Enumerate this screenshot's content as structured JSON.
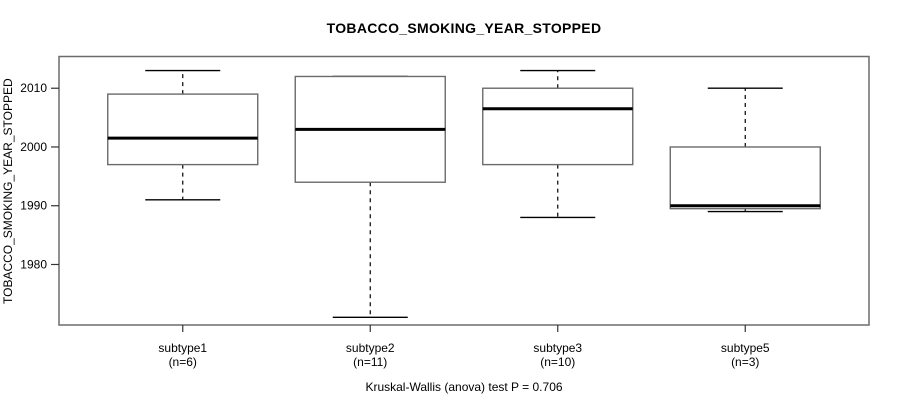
{
  "title": "TOBACCO_SMOKING_YEAR_STOPPED",
  "y_axis": {
    "label": "TOBACCO_SMOKING_YEAR_STOPPED",
    "ticks": [
      1980,
      1990,
      2000,
      2010
    ]
  },
  "caption": "Kruskal-Wallis (anova) test P = 0.706",
  "chart_data": {
    "type": "boxplot",
    "title": "TOBACCO_SMOKING_YEAR_STOPPED",
    "xlabel": "",
    "ylabel": "TOBACCO_SMOKING_YEAR_STOPPED",
    "ylim": [
      1969.7,
      2015.4
    ],
    "yticks": [
      1980,
      1990,
      2000,
      2010
    ],
    "grid": false,
    "legend": "none",
    "caption": "Kruskal-Wallis (anova) test P = 0.706",
    "groups": [
      {
        "label": "subtype1",
        "sublabel": "(n=6)",
        "n": 6,
        "min": 1991,
        "q1": 1997,
        "median": 2001.5,
        "q3": 2009,
        "max": 2013
      },
      {
        "label": "subtype2",
        "sublabel": "(n=11)",
        "n": 11,
        "min": 1971,
        "q1": 1994,
        "median": 2003,
        "q3": 2012,
        "max": 2012
      },
      {
        "label": "subtype3",
        "sublabel": "(n=10)",
        "n": 10,
        "min": 1988,
        "q1": 1997,
        "median": 2006.5,
        "q3": 2010,
        "max": 2013
      },
      {
        "label": "subtype5",
        "sublabel": "(n=3)",
        "n": 3,
        "min": 1989,
        "q1": 1989.5,
        "median": 1990,
        "q3": 2000,
        "max": 2010
      }
    ],
    "colors": {
      "background": "#ffffff",
      "frame": "#6b6b6b",
      "box_border": "#6b6b6b",
      "box_fill": "#ffffff",
      "median": "#000000",
      "whisker": "#000000",
      "tick": "#333333",
      "text": "#000000"
    }
  }
}
